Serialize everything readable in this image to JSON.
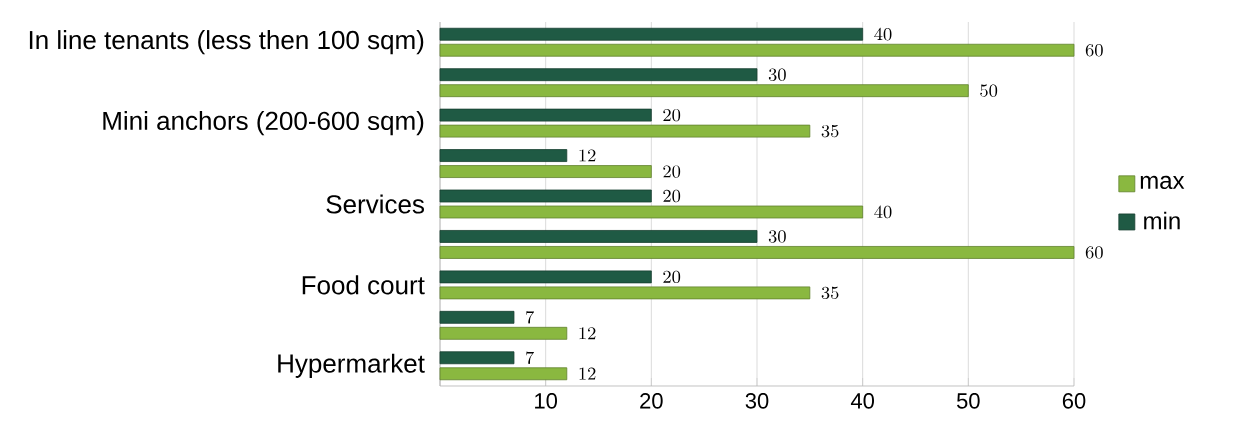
{
  "chart_data": {
    "type": "bar",
    "orientation": "horizontal",
    "categories": [
      "In line tenants (less then 100 sqm)",
      null,
      "Mini anchors (200-600 sqm)",
      null,
      "Services",
      null,
      "Food court",
      null,
      "Hypermarket"
    ],
    "series": [
      {
        "name": "max",
        "color": "#8ab840",
        "values": [
          60,
          50,
          35,
          20,
          40,
          60,
          35,
          12,
          12
        ]
      },
      {
        "name": "min",
        "color": "#1f5a44",
        "values": [
          40,
          30,
          20,
          12,
          20,
          30,
          20,
          7,
          7
        ]
      }
    ],
    "xlim": [
      0,
      60
    ],
    "xticks": [
      {
        "value": 0,
        "label": null
      },
      10,
      20,
      30,
      40,
      50,
      60
    ],
    "grid": "x",
    "legend": "right",
    "data_labels": true
  }
}
